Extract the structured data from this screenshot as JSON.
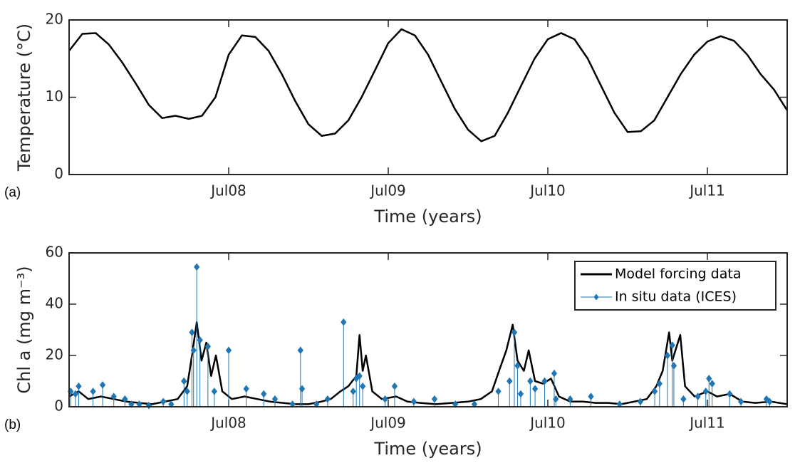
{
  "chart_data": [
    {
      "type": "line",
      "panel_label": "(a)",
      "xlabel": "Time (years)",
      "ylabel": "Temperature (°C)",
      "xlim": [
        2007.5,
        2012.0
      ],
      "ylim": [
        0,
        20
      ],
      "xticks": [
        {
          "value": 2008.5,
          "label": "Jul08"
        },
        {
          "value": 2009.5,
          "label": "Jul09"
        },
        {
          "value": 2010.5,
          "label": "Jul10"
        },
        {
          "value": 2011.5,
          "label": "Jul11"
        }
      ],
      "yticks": [
        0,
        10,
        20
      ],
      "series": [
        {
          "color": "#000000",
          "x": [
            2007.5,
            2007.583,
            2007.667,
            2007.75,
            2007.833,
            2007.917,
            2008.0,
            2008.083,
            2008.167,
            2008.25,
            2008.333,
            2008.417,
            2008.5,
            2008.583,
            2008.667,
            2008.75,
            2008.833,
            2008.917,
            2009.0,
            2009.083,
            2009.167,
            2009.25,
            2009.333,
            2009.417,
            2009.5,
            2009.583,
            2009.667,
            2009.75,
            2009.833,
            2009.917,
            2010.0,
            2010.083,
            2010.167,
            2010.25,
            2010.333,
            2010.417,
            2010.5,
            2010.583,
            2010.667,
            2010.75,
            2010.833,
            2010.917,
            2011.0,
            2011.083,
            2011.167,
            2011.25,
            2011.333,
            2011.417,
            2011.5,
            2011.583,
            2011.667,
            2011.75,
            2011.833,
            2011.917,
            2012.0
          ],
          "values": [
            16,
            18.2,
            18.3,
            16.8,
            14.5,
            11.8,
            9,
            7.3,
            7.6,
            7.2,
            7.6,
            10,
            15.5,
            18,
            17.8,
            16,
            13,
            9.5,
            6.5,
            5,
            5.3,
            7,
            10,
            13.5,
            17,
            18.8,
            18,
            15.5,
            12,
            8.5,
            5.8,
            4.3,
            5,
            8,
            11.5,
            15,
            17.5,
            18.3,
            17.5,
            15,
            11.5,
            8,
            5.5,
            5.6,
            7,
            10,
            13,
            15.5,
            17.2,
            17.9,
            17.3,
            15.5,
            13,
            11,
            8.3
          ]
        }
      ]
    },
    {
      "type": "line",
      "panel_label": "(b)",
      "xlabel": "Time (years)",
      "ylabel": "Chl a (mg m⁻³)",
      "xlim": [
        2007.5,
        2012.0
      ],
      "ylim": [
        0,
        60
      ],
      "xticks": [
        {
          "value": 2008.5,
          "label": "Jul08"
        },
        {
          "value": 2009.5,
          "label": "Jul09"
        },
        {
          "value": 2010.5,
          "label": "Jul10"
        },
        {
          "value": 2011.5,
          "label": "Jul11"
        }
      ],
      "yticks": [
        0,
        20,
        40,
        60
      ],
      "legend": "northeast",
      "series": [
        {
          "name": "Model forcing data",
          "color": "#000000",
          "x": [
            2007.5,
            2007.56,
            2007.62,
            2007.7,
            2007.78,
            2007.86,
            2007.94,
            2008.02,
            2008.1,
            2008.18,
            2008.24,
            2008.27,
            2008.3,
            2008.33,
            2008.36,
            2008.39,
            2008.42,
            2008.46,
            2008.52,
            2008.6,
            2008.68,
            2008.76,
            2008.84,
            2008.92,
            2009.0,
            2009.08,
            2009.14,
            2009.2,
            2009.25,
            2009.3,
            2009.32,
            2009.34,
            2009.36,
            2009.4,
            2009.46,
            2009.55,
            2009.62,
            2009.7,
            2009.8,
            2009.9,
            2010.0,
            2010.08,
            2010.15,
            2010.2,
            2010.24,
            2010.28,
            2010.31,
            2010.35,
            2010.38,
            2010.42,
            2010.47,
            2010.52,
            2010.57,
            2010.64,
            2010.72,
            2010.8,
            2010.88,
            2010.96,
            2011.04,
            2011.12,
            2011.18,
            2011.22,
            2011.26,
            2011.28,
            2011.3,
            2011.33,
            2011.36,
            2011.42,
            2011.5,
            2011.56,
            2011.64,
            2011.72,
            2011.8,
            2011.9,
            2012.0
          ],
          "values": [
            4,
            6,
            3,
            4,
            3,
            2,
            1.5,
            1,
            2,
            3,
            8,
            20,
            33,
            18,
            25,
            12,
            20,
            6,
            3,
            4,
            3,
            2,
            1.5,
            1,
            1,
            2,
            3,
            6,
            8,
            12,
            28,
            14,
            20,
            6,
            3,
            4,
            2,
            1.5,
            1,
            1.5,
            2,
            3,
            6,
            15,
            22,
            32,
            18,
            14,
            22,
            10,
            9,
            11,
            4,
            2,
            2,
            1.5,
            1.5,
            1,
            2,
            3,
            8,
            14,
            29,
            18,
            22,
            28,
            8,
            4,
            6,
            4,
            5,
            2,
            1.5,
            2,
            1
          ]
        },
        {
          "name": "In situ data (ICES)",
          "color": "#1f77b4",
          "type": "stem",
          "marker": "diamond",
          "x": [
            2007.51,
            2007.54,
            2007.56,
            2007.65,
            2007.71,
            2007.78,
            2007.85,
            2007.89,
            2007.94,
            2008.0,
            2008.09,
            2008.14,
            2008.22,
            2008.24,
            2008.27,
            2008.28,
            2008.3,
            2008.32,
            2008.37,
            2008.41,
            2008.5,
            2008.61,
            2008.72,
            2008.79,
            2008.9,
            2008.95,
            2008.96,
            2009.05,
            2009.12,
            2009.22,
            2009.28,
            2009.3,
            2009.32,
            2009.34,
            2009.48,
            2009.54,
            2009.66,
            2009.79,
            2009.92,
            2010.04,
            2010.19,
            2010.26,
            2010.29,
            2010.31,
            2010.33,
            2010.39,
            2010.42,
            2010.48,
            2010.54,
            2010.55,
            2010.64,
            2010.77,
            2010.95,
            2011.08,
            2011.17,
            2011.2,
            2011.25,
            2011.28,
            2011.29,
            2011.35,
            2011.44,
            2011.49,
            2011.51,
            2011.53,
            2011.64,
            2011.71,
            2011.87,
            2011.89
          ],
          "values": [
            6,
            5,
            8,
            6,
            8.5,
            4,
            3,
            1,
            1,
            0.5,
            2,
            1,
            10,
            6,
            29,
            22,
            54.5,
            26,
            23.5,
            6,
            22,
            7,
            5,
            3,
            1,
            22,
            7,
            1,
            3,
            33,
            6,
            11,
            12,
            8,
            3,
            8,
            2,
            3,
            1,
            1,
            6,
            10,
            29,
            16,
            5,
            10,
            7,
            10,
            13,
            3,
            3,
            4,
            1,
            2,
            6,
            9,
            20,
            24,
            16,
            3,
            4,
            6,
            11,
            9,
            5,
            2,
            3,
            2
          ]
        }
      ]
    }
  ]
}
